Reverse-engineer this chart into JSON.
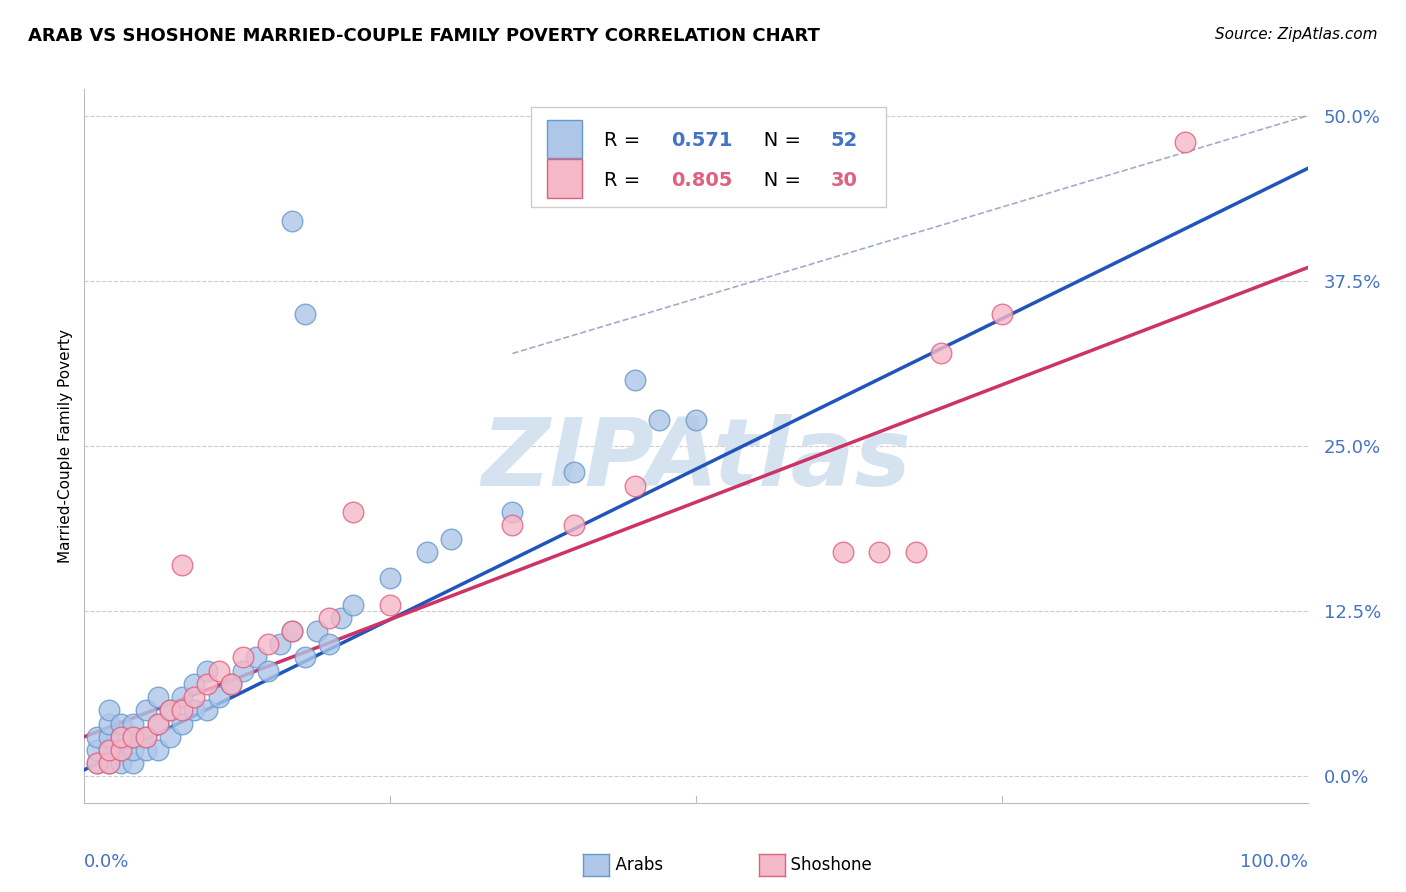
{
  "title": "ARAB VS SHOSHONE MARRIED-COUPLE FAMILY POVERTY CORRELATION CHART",
  "source": "Source: ZipAtlas.com",
  "ylabel": "Married-Couple Family Poverty",
  "ytick_labels": [
    "0.0%",
    "12.5%",
    "25.0%",
    "37.5%",
    "50.0%"
  ],
  "ytick_values": [
    0.0,
    12.5,
    25.0,
    37.5,
    50.0
  ],
  "xlim": [
    0.0,
    100.0
  ],
  "ylim": [
    -2.0,
    52.0
  ],
  "arab_R": 0.571,
  "arab_N": 52,
  "shoshone_R": 0.805,
  "shoshone_N": 30,
  "arab_color": "#aec6e8",
  "arab_edge_color": "#6699cc",
  "shoshone_color": "#f5b8c8",
  "shoshone_edge_color": "#e06080",
  "trend_arab_color": "#2255bb",
  "trend_shoshone_color": "#cc3366",
  "diagonal_color": "#8899bb",
  "diagonal_style": "--",
  "background_color": "#ffffff",
  "grid_color": "#cccccc",
  "ytick_color": "#4472c4",
  "watermark_text": "ZIPAtlas",
  "watermark_color": "#d5e3f0",
  "arab_trend_x0": 0,
  "arab_trend_y0": 0.5,
  "arab_trend_x1": 100,
  "arab_trend_y1": 46.0,
  "shoshone_trend_x0": 0,
  "shoshone_trend_y0": 3.0,
  "shoshone_trend_x1": 100,
  "shoshone_trend_y1": 38.5,
  "diag_x0": 35,
  "diag_y0": 32,
  "diag_x1": 100,
  "diag_y1": 50,
  "arab_x": [
    1,
    1,
    1,
    2,
    2,
    2,
    2,
    2,
    3,
    3,
    3,
    3,
    4,
    4,
    4,
    4,
    5,
    5,
    5,
    6,
    6,
    6,
    7,
    7,
    8,
    8,
    9,
    9,
    10,
    10,
    11,
    12,
    13,
    14,
    15,
    16,
    17,
    18,
    19,
    20,
    21,
    22,
    25,
    28,
    30,
    35,
    40,
    47,
    50,
    17,
    18,
    45
  ],
  "arab_y": [
    1,
    2,
    3,
    1,
    2,
    3,
    4,
    5,
    1,
    2,
    3,
    4,
    1,
    2,
    3,
    4,
    2,
    3,
    5,
    2,
    4,
    6,
    3,
    5,
    4,
    6,
    5,
    7,
    5,
    8,
    6,
    7,
    8,
    9,
    8,
    10,
    11,
    9,
    11,
    10,
    12,
    13,
    15,
    17,
    18,
    20,
    23,
    27,
    27,
    42,
    35,
    30
  ],
  "shoshone_x": [
    1,
    2,
    2,
    3,
    3,
    4,
    5,
    6,
    7,
    8,
    8,
    9,
    10,
    11,
    12,
    13,
    15,
    17,
    20,
    22,
    25,
    35,
    40,
    45,
    62,
    65,
    68,
    70,
    75,
    90
  ],
  "shoshone_y": [
    1,
    1,
    2,
    2,
    3,
    3,
    3,
    4,
    5,
    5,
    16,
    6,
    7,
    8,
    7,
    9,
    10,
    11,
    12,
    20,
    13,
    19,
    19,
    22,
    17,
    17,
    17,
    32,
    35,
    48
  ]
}
